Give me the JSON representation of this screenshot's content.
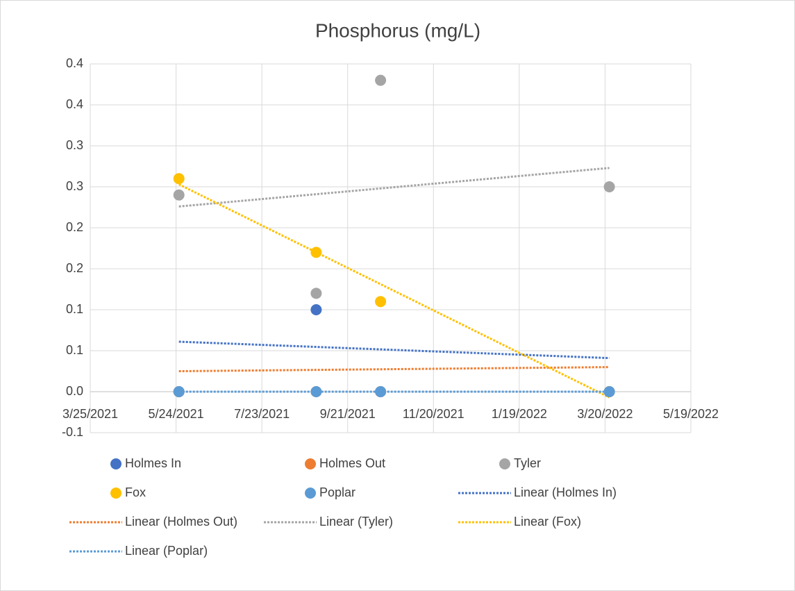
{
  "chart_data": {
    "type": "scatter",
    "title": "Phosphorus (mg/L)",
    "xlim": [
      "3/25/2021",
      "5/19/2022"
    ],
    "xticks": [
      "3/25/2021",
      "5/24/2021",
      "7/23/2021",
      "9/21/2021",
      "11/20/2021",
      "1/19/2022",
      "3/20/2022",
      "5/19/2022"
    ],
    "ylim": [
      -0.05,
      0.4
    ],
    "yticks": [
      {
        "value": -0.05,
        "label": "-0.1"
      },
      {
        "value": 0,
        "label": "0.0"
      },
      {
        "value": 0.05,
        "label": "0.1"
      },
      0.1,
      {
        "value": 0.15,
        "label": "0.2"
      },
      0.2,
      {
        "value": 0.25,
        "label": "0.3"
      },
      0.3,
      {
        "value": 0.35,
        "label": "0.4"
      },
      0.4
    ],
    "grid": true,
    "legend": "bottom",
    "series": [
      {
        "name": "Holmes In",
        "color": "#4472c4",
        "style": "marker",
        "x": [
          "5/26/2021",
          "8/30/2021",
          "10/14/2021",
          "3/23/2022"
        ],
        "values": [
          0,
          0.1,
          0,
          0
        ]
      },
      {
        "name": "Holmes Out",
        "color": "#ed7d31",
        "style": "marker",
        "x": [
          "5/26/2021",
          "8/30/2021",
          "10/14/2021",
          "3/23/2022"
        ],
        "values": [
          0,
          0,
          0,
          0
        ]
      },
      {
        "name": "Tyler",
        "color": "#a5a5a5",
        "style": "marker",
        "x": [
          "5/26/2021",
          "8/30/2021",
          "10/14/2021",
          "3/23/2022"
        ],
        "values": [
          0.24,
          0.12,
          0.38,
          0.25
        ]
      },
      {
        "name": "Fox",
        "color": "#ffc000",
        "style": "marker",
        "x": [
          "5/26/2021",
          "8/30/2021",
          "10/14/2021",
          "3/23/2022"
        ],
        "values": [
          0.26,
          0.17,
          0.11,
          0
        ]
      },
      {
        "name": "Poplar",
        "color": "#5b9bd5",
        "style": "marker",
        "x": [
          "5/26/2021",
          "8/30/2021",
          "10/14/2021",
          "3/23/2022"
        ],
        "values": [
          0,
          0,
          0,
          0
        ]
      },
      {
        "name": "Linear (Holmes In)",
        "color": "#4472c4",
        "style": "dotted",
        "x": [
          "5/26/2021",
          "3/23/2022"
        ],
        "values": [
          0.061,
          0.041
        ]
      },
      {
        "name": "Linear (Holmes Out)",
        "color": "#ed7d31",
        "style": "dotted",
        "x": [
          "5/26/2021",
          "3/23/2022"
        ],
        "values": [
          0.025,
          0.03
        ]
      },
      {
        "name": "Linear (Tyler)",
        "color": "#a5a5a5",
        "style": "dotted",
        "x": [
          "5/26/2021",
          "3/23/2022"
        ],
        "values": [
          0.226,
          0.273
        ]
      },
      {
        "name": "Linear (Fox)",
        "color": "#ffc000",
        "style": "dotted",
        "x": [
          "5/26/2021",
          "3/23/2022"
        ],
        "values": [
          0.253,
          -0.007
        ]
      },
      {
        "name": "Linear (Poplar)",
        "color": "#5b9bd5",
        "style": "dotted",
        "x": [
          "5/26/2021",
          "3/23/2022"
        ],
        "values": [
          0,
          0
        ]
      }
    ]
  }
}
